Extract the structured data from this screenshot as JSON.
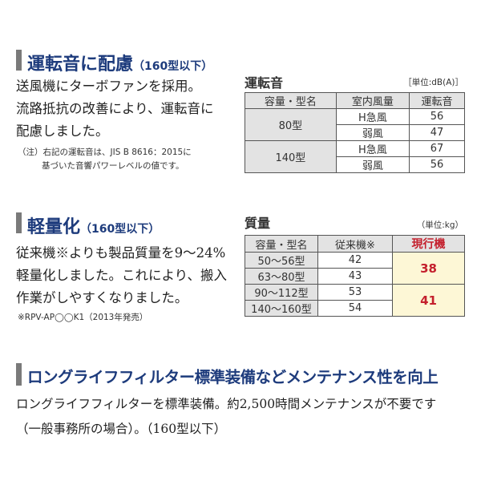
{
  "section1": {
    "heading": "運転音に配慮",
    "heading_sub": "（160型以下）",
    "body": [
      "送風機にターボファンを採用。",
      "流路抵抗の改善により、運転音に",
      "配慮しました。"
    ],
    "note": [
      "（注）右記の運転音は、JIS B 8616：2015に",
      "基づいた音響パワーレベルの値です。"
    ]
  },
  "table1": {
    "title": "運転音",
    "unit": "［単位:dB(A)］",
    "headers": [
      "容量・型名",
      "室内風量",
      "運転音"
    ],
    "rows": [
      {
        "model": "80型",
        "fan": [
          "H急風",
          "弱風"
        ],
        "values": [
          "56",
          "47"
        ]
      },
      {
        "model": "140型",
        "fan": [
          "H急風",
          "弱風"
        ],
        "values": [
          "67",
          "56"
        ]
      }
    ]
  },
  "section2": {
    "heading": "軽量化",
    "heading_sub": "（160型以下）",
    "body": [
      "従来機※よりも製品質量を9〜24%",
      "軽量化しました。これにより、搬入",
      "作業がしやすくなりました。"
    ],
    "note": "※RPV-AP◯◯K1（2013年発売）"
  },
  "table2": {
    "title": "質量",
    "unit": "（単位:kg）",
    "headers": [
      "容量・型名",
      "従来機※",
      "現行機"
    ],
    "rows": [
      [
        "50〜56型",
        "42"
      ],
      [
        "63〜80型",
        "43"
      ],
      [
        "90〜112型",
        "53"
      ],
      [
        "140〜160型",
        "54"
      ]
    ],
    "current": [
      "38",
      "41"
    ]
  },
  "section3": {
    "heading": "ロングライフフィルター標準装備などメンテナンス性を向上",
    "body": [
      "ロングライフフィルターを標準装備。約2,500時間メンテナンスが不要です",
      "（一般事務所の場合）。（160型以下）"
    ]
  },
  "colors": {
    "heading": "#1d3b7c",
    "accent_red": "#c4202d",
    "highlight": "#fdf7d6"
  }
}
